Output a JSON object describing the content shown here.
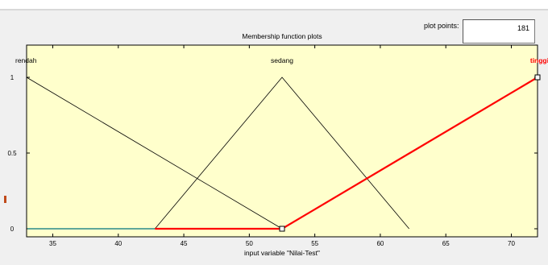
{
  "plot_points": {
    "label": "plot points:",
    "value": "181"
  },
  "chart_data": {
    "type": "line",
    "title": "Membership function plots",
    "xlabel": "input variable \"Nilai-Test\"",
    "ylabel": "",
    "xlim": [
      33,
      72
    ],
    "ylim": [
      0,
      1
    ],
    "x_ticks": [
      35,
      40,
      45,
      50,
      55,
      60,
      65,
      70
    ],
    "y_ticks": [
      0,
      0.5,
      1
    ],
    "y_tick_labels": [
      "0",
      "0.5",
      "1"
    ],
    "grid": false,
    "series": [
      {
        "name": "rendah",
        "x": [
          33,
          52.5
        ],
        "y": [
          1,
          0
        ],
        "color": "#000000",
        "highlighted": false
      },
      {
        "name": "sedang",
        "x": [
          42.8,
          52.5,
          62.2
        ],
        "y": [
          0,
          1,
          0
        ],
        "color": "#000000",
        "highlighted": false
      },
      {
        "name": "tinggi",
        "x": [
          33,
          42.8,
          52.5,
          72
        ],
        "y": [
          0,
          0,
          0,
          1
        ],
        "color": "#ff0000",
        "highlighted": true
      }
    ],
    "colors": {
      "background": "#ffffcc",
      "axis": "#000000",
      "baseline": "#2a8a8a",
      "selected": "#ff0000"
    }
  }
}
